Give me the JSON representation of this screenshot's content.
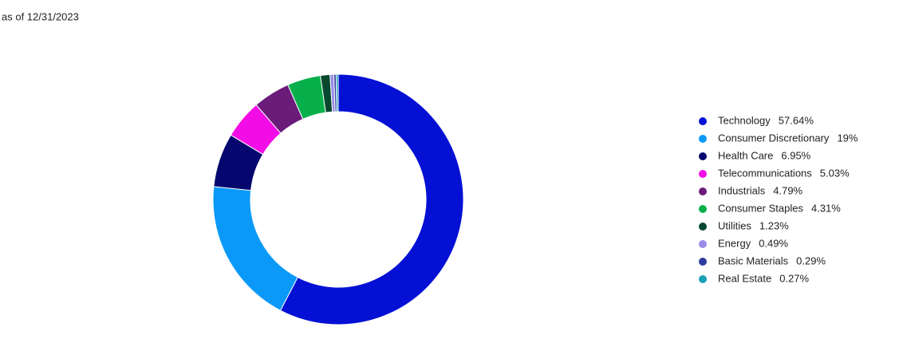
{
  "chart_data": {
    "type": "donut",
    "subtitle": "as of 12/31/2023",
    "categories": [
      "Technology",
      "Consumer Discretionary",
      "Health Care",
      "Telecommunications",
      "Industrials",
      "Consumer Staples",
      "Utilities",
      "Energy",
      "Basic Materials",
      "Real Estate"
    ],
    "values": [
      57.64,
      19,
      6.95,
      5.03,
      4.79,
      4.31,
      1.23,
      0.49,
      0.29,
      0.27
    ],
    "value_labels": [
      "57.64%",
      "19%",
      "6.95%",
      "5.03%",
      "4.79%",
      "4.31%",
      "1.23%",
      "0.49%",
      "0.29%",
      "0.27%"
    ],
    "colors": [
      "#0410d4",
      "#0a99f8",
      "#05076e",
      "#f20ce6",
      "#6b1c7a",
      "#08b04b",
      "#07482f",
      "#9a8be8",
      "#2e3a9e",
      "#1a9fb5"
    ],
    "legend": "right"
  }
}
